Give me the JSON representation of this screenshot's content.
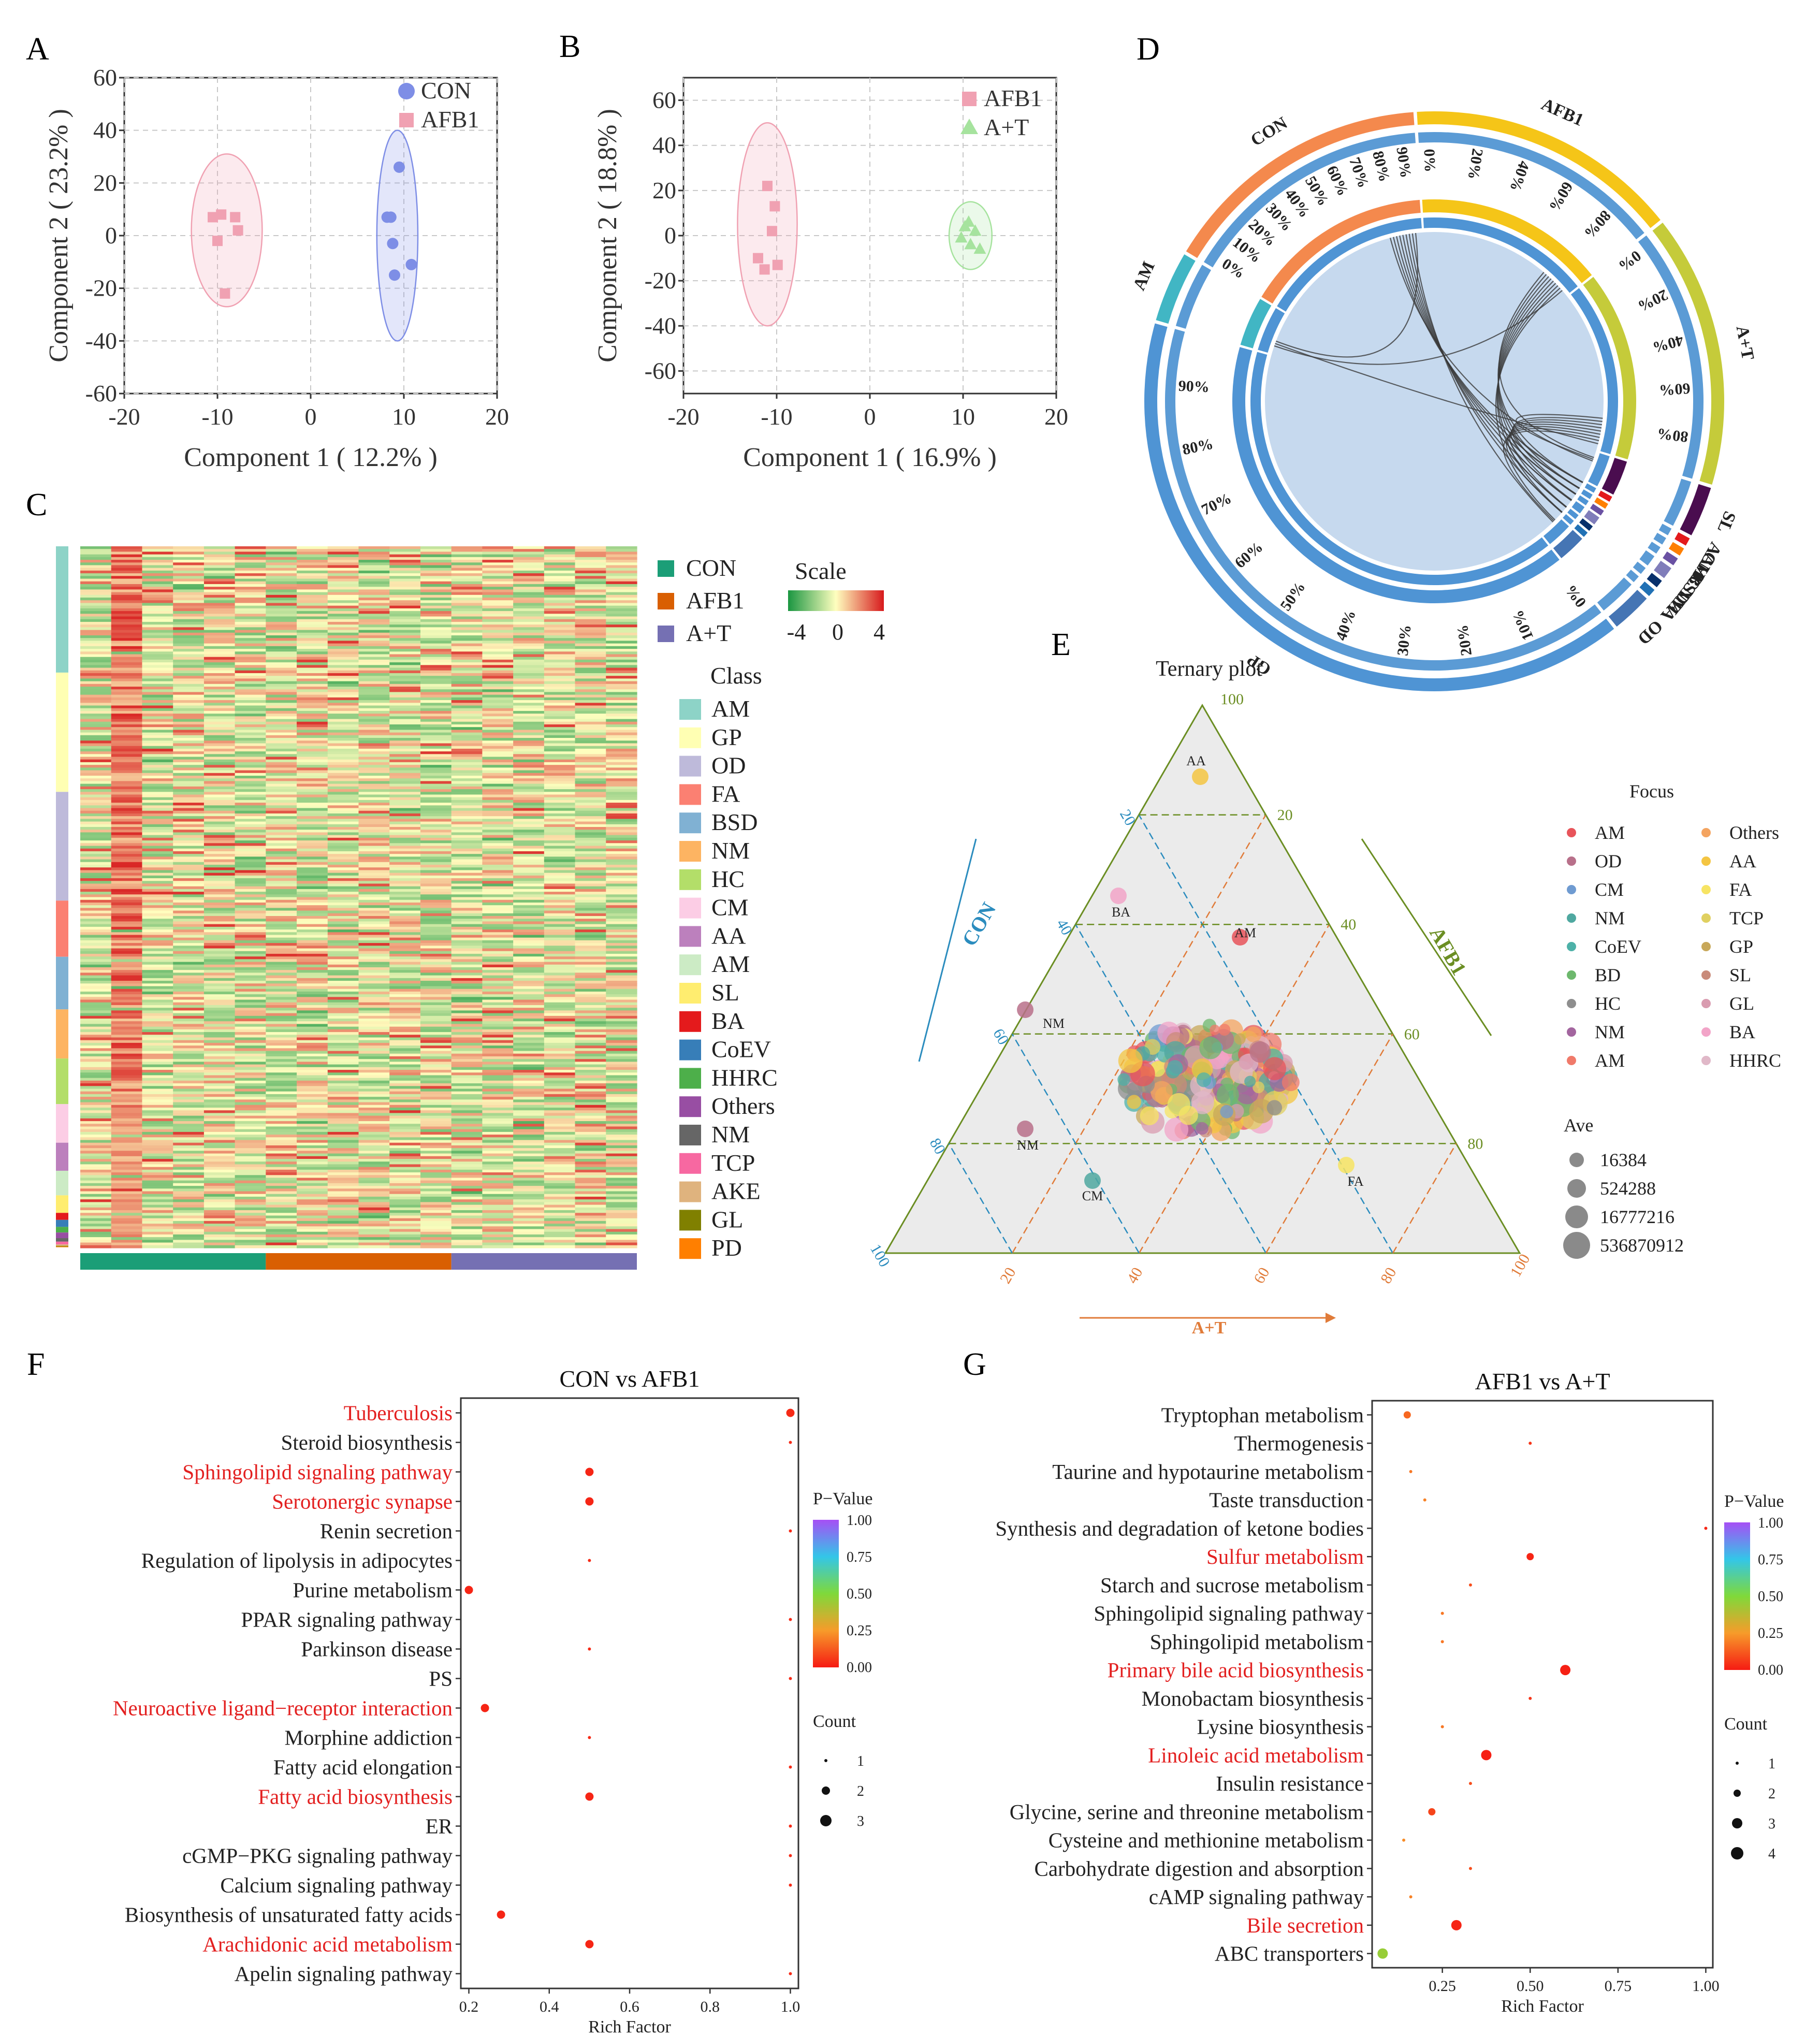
{
  "panels": {
    "A": {
      "letter": "A"
    },
    "B": {
      "letter": "B"
    },
    "C": {
      "letter": "C"
    },
    "D": {
      "letter": "D"
    },
    "E": {
      "letter": "E"
    },
    "F": {
      "letter": "F"
    },
    "G": {
      "letter": "G"
    }
  },
  "chart_data": [
    {
      "id": "A",
      "type": "scatter",
      "xlabel": "Component 1 ( 12.2% )",
      "ylabel": "Component 2 ( 23.2% )",
      "xlim": [
        -20,
        20
      ],
      "ylim": [
        -60,
        60
      ],
      "xticks": [
        "-20",
        "-10",
        "0",
        "10",
        "20"
      ],
      "yticks": [
        "-60",
        "-40",
        "-20",
        "0",
        "20",
        "40",
        "60"
      ],
      "grid": true,
      "legend_position": "top-right",
      "series": [
        {
          "name": "CON",
          "color": "#7e8ee6",
          "marker": "circle",
          "x": [
            9.5,
            8.2,
            8.8,
            9.0,
            10.8,
            8.6
          ],
          "y": [
            26,
            7,
            -3,
            -15,
            -11,
            7
          ],
          "ellipse": {
            "cx": 9.3,
            "cy": 0,
            "rx": 2.2,
            "ry": 40
          }
        },
        {
          "name": "AFB1",
          "color": "#f0a1b2",
          "marker": "square",
          "x": [
            -10.5,
            -9.6,
            -8.1,
            -10.0,
            -7.8,
            -9.2
          ],
          "y": [
            7,
            8,
            7,
            -2,
            2,
            -22
          ],
          "ellipse": {
            "cx": -9.0,
            "cy": 2,
            "rx": 3.8,
            "ry": 29
          }
        }
      ]
    },
    {
      "id": "B",
      "type": "scatter",
      "xlabel": "Component 1 ( 16.9% )",
      "ylabel": "Component 2 ( 18.8% )",
      "xlim": [
        -20,
        20
      ],
      "ylim": [
        -70,
        70
      ],
      "xticks": [
        "-20",
        "-10",
        "0",
        "10",
        "20"
      ],
      "yticks": [
        "-60",
        "-40",
        "-20",
        "0",
        "20",
        "40",
        "60"
      ],
      "grid": true,
      "legend_position": "top-right",
      "series": [
        {
          "name": "AFB1",
          "color": "#f0a1b2",
          "marker": "square",
          "x": [
            -11.0,
            -10.2,
            -10.5,
            -11.3,
            -9.9,
            -12.0
          ],
          "y": [
            22,
            13,
            2,
            -15,
            -13,
            -10
          ],
          "ellipse": {
            "cx": -11,
            "cy": 5,
            "rx": 3.2,
            "ry": 45
          }
        },
        {
          "name": "A+T",
          "color": "#a6e39e",
          "marker": "triangle",
          "x": [
            9.8,
            10.6,
            11.3,
            10.2,
            10.8,
            11.8
          ],
          "y": [
            -1,
            6,
            2,
            4,
            -4,
            -6
          ],
          "ellipse": {
            "cx": 10.8,
            "cy": 0,
            "rx": 2.3,
            "ry": 15
          }
        }
      ]
    },
    {
      "id": "C",
      "type": "heatmap",
      "groups": [
        {
          "name": "CON",
          "color": "#1b9e77"
        },
        {
          "name": "AFB1",
          "color": "#d95f02"
        },
        {
          "name": "A+T",
          "color": "#7570b3"
        }
      ],
      "scale": {
        "title": "Scale",
        "ticks": [
          "-4",
          "0",
          "4"
        ],
        "colors": [
          "#1a9641",
          "#ffffbf",
          "#d7191c"
        ]
      },
      "class_title": "Class",
      "classes": [
        {
          "name": "AM",
          "color": "#8dd3c7",
          "share": 0.18
        },
        {
          "name": "GP",
          "color": "#ffffb3",
          "share": 0.17
        },
        {
          "name": "OD",
          "color": "#bebada",
          "share": 0.155
        },
        {
          "name": "FA",
          "color": "#fb8072",
          "share": 0.08
        },
        {
          "name": "BSD",
          "color": "#80b1d3",
          "share": 0.075
        },
        {
          "name": "NM",
          "color": "#fdb462",
          "share": 0.07
        },
        {
          "name": "HC",
          "color": "#b3de69",
          "share": 0.065
        },
        {
          "name": "CM",
          "color": "#fccde5",
          "share": 0.055
        },
        {
          "name": "AA",
          "color": "#bc80bd",
          "share": 0.04
        },
        {
          "name": "AM",
          "color": "#ccebc5",
          "share": 0.035
        },
        {
          "name": "SL",
          "color": "#ffed6f",
          "share": 0.025
        },
        {
          "name": "BA",
          "color": "#e41a1c",
          "share": 0.01
        },
        {
          "name": "CoEV",
          "color": "#377eb8",
          "share": 0.01
        },
        {
          "name": "HHRC",
          "color": "#4daf4a",
          "share": 0.008
        },
        {
          "name": "Others",
          "color": "#984ea3",
          "share": 0.008
        },
        {
          "name": "NM",
          "color": "#666666",
          "share": 0.005
        },
        {
          "name": "TCP",
          "color": "#f768a1",
          "share": 0.004
        },
        {
          "name": "AKE",
          "color": "#dfb37e",
          "share": 0.002
        },
        {
          "name": "GL",
          "color": "#808000",
          "share": 0.001
        },
        {
          "name": "PD",
          "color": "#ff7f00",
          "share": 0.001
        }
      ]
    },
    {
      "id": "D",
      "type": "chord",
      "groups": [
        {
          "name": "AFB1",
          "color": "#f5c518",
          "share": 0.135
        },
        {
          "name": "A+T",
          "color": "#c5cb3a",
          "share": 0.135
        },
        {
          "name": "SL",
          "color": "#4a0d4f",
          "share": 0.025
        },
        {
          "name": "AA",
          "color": "#e31a1c",
          "share": 0.004
        },
        {
          "name": "CM",
          "color": "#ff7f00",
          "share": 0.004
        },
        {
          "name": "HC",
          "color": "#6a51a3",
          "share": 0.004
        },
        {
          "name": "BSD",
          "color": "#807dba",
          "share": 0.006
        },
        {
          "name": "NM",
          "color": "#08306b",
          "share": 0.004
        },
        {
          "name": "FA",
          "color": "#2171b5",
          "share": 0.004
        },
        {
          "name": "OD",
          "color": "#4575b4",
          "share": 0.02
        },
        {
          "name": "GP",
          "color": "#4f94d4",
          "share": 0.355
        },
        {
          "name": "AM",
          "color": "#41b6c4",
          "share": 0.035
        },
        {
          "name": "CON",
          "color": "#f4894d",
          "share": 0.135
        }
      ],
      "percent_labels": {
        "AFB1": [
          "0%",
          "20%",
          "40%",
          "60%",
          "80%"
        ],
        "A+T": [
          "0%",
          "20%",
          "40%",
          "60%",
          "80%"
        ],
        "CON": [
          "0%",
          "10%",
          "20%",
          "30%",
          "40%",
          "50%",
          "60%",
          "70%",
          "80%",
          "90%"
        ],
        "GP": [
          "0%",
          "10%",
          "20%",
          "30%",
          "40%",
          "50%",
          "60%",
          "70%",
          "80%",
          "90%"
        ]
      }
    },
    {
      "id": "E",
      "type": "scatter",
      "title": "Ternary plot",
      "axes": [
        "CON",
        "AFB1",
        "A+T"
      ],
      "ticks": [
        "20",
        "40",
        "60",
        "80",
        "100"
      ],
      "annotations": [
        "AA",
        "BA",
        "AM",
        "NM",
        "NM",
        "CM",
        "FA"
      ],
      "legend_title": "Focus",
      "focus": [
        {
          "name": "AM",
          "color": "#e8545a"
        },
        {
          "name": "OD",
          "color": "#b8708a"
        },
        {
          "name": "CM",
          "color": "#6f9bd1"
        },
        {
          "name": "NM",
          "color": "#4fa8a0"
        },
        {
          "name": "CoEV",
          "color": "#4db1a8"
        },
        {
          "name": "BD",
          "color": "#6db86d"
        },
        {
          "name": "HC",
          "color": "#8e8e8e"
        },
        {
          "name": "NM",
          "color": "#a3659f"
        },
        {
          "name": "AM",
          "color": "#f07a6a"
        },
        {
          "name": "Others",
          "color": "#f4a460"
        },
        {
          "name": "AA",
          "color": "#f4c542"
        },
        {
          "name": "FA",
          "color": "#f7e463"
        },
        {
          "name": "TCP",
          "color": "#e0d060"
        },
        {
          "name": "GP",
          "color": "#c8a85a"
        },
        {
          "name": "SL",
          "color": "#c98b7a"
        },
        {
          "name": "GL",
          "color": "#d99cb0"
        },
        {
          "name": "BA",
          "color": "#f2a4c8"
        },
        {
          "name": "HHRC",
          "color": "#e0b8c8"
        }
      ],
      "size_title": "Ave",
      "sizes": [
        "16384",
        "524288",
        "16777216",
        "536870912"
      ]
    },
    {
      "id": "F",
      "type": "scatter",
      "title": "CON vs AFB1",
      "xlabel": "Rich Factor",
      "xlim": [
        0.18,
        1.02
      ],
      "xticks": [
        "0.2",
        "0.4",
        "0.6",
        "0.8",
        "1.0"
      ],
      "categories": [
        "Tuberculosis",
        "Steroid biosynthesis",
        "Sphingolipid signaling pathway",
        "Serotonergic synapse",
        "Renin secretion",
        "Regulation of lipolysis in adipocytes",
        "Purine metabolism",
        "PPAR signaling pathway",
        "Parkinson disease",
        "PS",
        "Neuroactive ligand−receptor interaction",
        "Morphine addiction",
        "Fatty acid elongation",
        "Fatty acid biosynthesis",
        "ER",
        "cGMP−PKG signaling pathway",
        "Calcium signaling pathway",
        "Biosynthesis of unsaturated fatty acids",
        "Arachidonic acid metabolism",
        "Apelin signaling pathway"
      ],
      "highlighted": [
        true,
        false,
        true,
        true,
        false,
        false,
        false,
        false,
        false,
        false,
        true,
        false,
        false,
        true,
        false,
        false,
        false,
        false,
        true,
        false
      ],
      "rich_factor": [
        1.0,
        1.0,
        0.5,
        0.5,
        1.0,
        0.5,
        0.2,
        1.0,
        0.5,
        1.0,
        0.24,
        0.5,
        1.0,
        0.5,
        1.0,
        1.0,
        1.0,
        0.28,
        0.5,
        1.0
      ],
      "count": [
        2,
        1,
        2,
        2,
        1,
        1,
        2,
        1,
        1,
        1,
        2,
        1,
        1,
        2,
        1,
        1,
        1,
        2,
        2,
        1
      ],
      "p_value": [
        0.03,
        0.03,
        0.02,
        0.02,
        0.03,
        0.03,
        0.02,
        0.03,
        0.03,
        0.03,
        0.02,
        0.03,
        0.03,
        0.02,
        0.03,
        0.03,
        0.03,
        0.02,
        0.02,
        0.03
      ],
      "pvalue_legend": {
        "title": "P−Value",
        "ticks": [
          "1.00",
          "0.75",
          "0.50",
          "0.25",
          "0.00"
        ]
      },
      "count_legend": {
        "title": "Count",
        "labels": [
          "1",
          "2",
          "3"
        ]
      }
    },
    {
      "id": "G",
      "type": "scatter",
      "title": "AFB1 vs A+T",
      "xlabel": "Rich Factor",
      "xlim": [
        0.05,
        1.02
      ],
      "xticks": [
        "0.25",
        "0.50",
        "0.75",
        "1.00"
      ],
      "categories": [
        "Tryptophan metabolism",
        "Thermogenesis",
        "Taurine and hypotaurine metabolism",
        "Taste transduction",
        "Synthesis and degradation of ketone bodies",
        "Sulfur metabolism",
        "Starch and sucrose metabolism",
        "Sphingolipid signaling pathway",
        "Sphingolipid metabolism",
        "Primary bile acid biosynthesis",
        "Monobactam biosynthesis",
        "Lysine biosynthesis",
        "Linoleic acid metabolism",
        "Insulin resistance",
        "Glycine, serine and threonine metabolism",
        "Cysteine and methionine metabolism",
        "Carbohydrate digestion and absorption",
        "cAMP signaling pathway",
        "Bile secretion",
        "ABC transporters"
      ],
      "highlighted": [
        false,
        false,
        false,
        false,
        false,
        true,
        false,
        false,
        false,
        true,
        false,
        false,
        true,
        false,
        false,
        false,
        false,
        false,
        true,
        false
      ],
      "rich_factor": [
        0.15,
        0.5,
        0.16,
        0.2,
        1.0,
        0.5,
        0.33,
        0.25,
        0.25,
        0.6,
        0.5,
        0.25,
        0.375,
        0.33,
        0.22,
        0.14,
        0.33,
        0.16,
        0.29,
        0.08
      ],
      "count": [
        2,
        1,
        1,
        1,
        1,
        2,
        1,
        1,
        1,
        3,
        1,
        1,
        3,
        1,
        2,
        1,
        1,
        1,
        3,
        3
      ],
      "p_value": [
        0.15,
        0.05,
        0.18,
        0.2,
        0.02,
        0.02,
        0.1,
        0.18,
        0.18,
        0.01,
        0.05,
        0.18,
        0.01,
        0.1,
        0.08,
        0.22,
        0.1,
        0.2,
        0.02,
        0.45
      ],
      "pvalue_legend": {
        "title": "P−Value",
        "ticks": [
          "1.00",
          "0.75",
          "0.50",
          "0.25",
          "0.00"
        ]
      },
      "count_legend": {
        "title": "Count",
        "labels": [
          "1",
          "2",
          "3",
          "4"
        ]
      }
    }
  ]
}
